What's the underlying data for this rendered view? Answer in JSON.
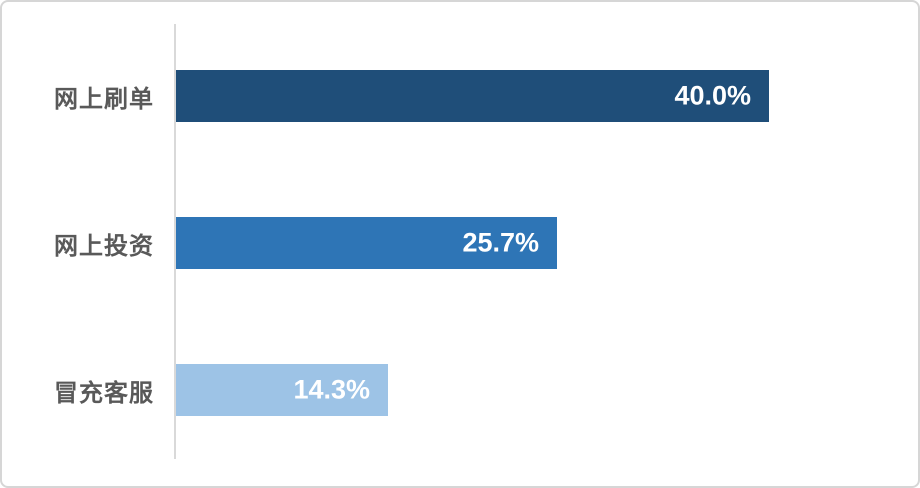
{
  "chart_data": {
    "type": "bar",
    "orientation": "horizontal",
    "title": "",
    "xlabel": "",
    "ylabel": "",
    "categories": [
      "网上刷单",
      "网上投资",
      "冒充客服"
    ],
    "values": [
      40.0,
      25.7,
      14.3
    ],
    "value_labels": [
      "40.0%",
      "25.7%",
      "14.3%"
    ],
    "xlim": [
      0,
      50
    ],
    "grid": false,
    "legend": false,
    "bar_colors": [
      "#1f4e79",
      "#2e75b6",
      "#9dc3e6"
    ],
    "axis_line_color": "#d9d9d9",
    "category_label_color": "#595959",
    "value_label_color": "#ffffff",
    "background_color": "#ffffff",
    "border_color": "#d6d6d6"
  }
}
